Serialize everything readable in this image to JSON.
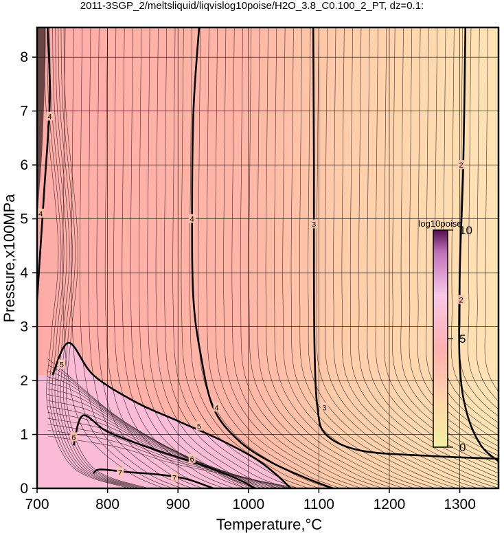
{
  "chart_data": {
    "type": "contour",
    "title": "2011-3SGP_2/meltsliquid/liqvislog10poise/H2O_3.8_C0.100_2_PT, dz=0.1:",
    "xlabel": "Temperature,°C",
    "ylabel": "Pressure,x100MPa",
    "xlim": [
      700,
      1355
    ],
    "ylim": [
      0,
      8.55
    ],
    "xticks": [
      "700",
      "800",
      "900",
      "1000",
      "1100",
      "1200",
      "1300"
    ],
    "yticks": [
      "0",
      "1",
      "2",
      "3",
      "4",
      "5",
      "6",
      "7",
      "8"
    ],
    "grid": true,
    "colorbar": {
      "title": "log10poise",
      "ticks": [
        "0",
        "5",
        "10"
      ],
      "range": [
        0,
        10
      ],
      "colors": [
        "#f4f0a8",
        "#ffc6a0",
        "#ffb4b4",
        "#f8c0e8",
        "#c060b0",
        "#400040"
      ]
    },
    "background_colors": [
      "#fee0b0",
      "#ffb0a8",
      "#f8b8c8"
    ],
    "major_contours": [
      {
        "level": "2",
        "label_points": [
          [
            1302,
            6.0
          ],
          [
            1302,
            3.5
          ]
        ],
        "points": [
          [
            1308,
            8.55
          ],
          [
            1305,
            6
          ],
          [
            1300,
            4
          ],
          [
            1300,
            2.3
          ],
          [
            1310,
            1.4
          ],
          [
            1330,
            0.8
          ],
          [
            1355,
            0.5
          ]
        ]
      },
      {
        "level": "3",
        "label_points": [
          [
            1093,
            4.9
          ],
          [
            1108,
            1.5
          ]
        ],
        "points": [
          [
            1092,
            8.55
          ],
          [
            1093,
            6
          ],
          [
            1093,
            4
          ],
          [
            1094,
            2.5
          ],
          [
            1098,
            1.5
          ],
          [
            1110,
            1.0
          ],
          [
            1160,
            0.7
          ],
          [
            1260,
            0.6
          ],
          [
            1355,
            0.55
          ]
        ]
      },
      {
        "level": "4",
        "label_points": [
          [
            920,
            5.0
          ],
          [
            955,
            1.5
          ],
          [
            705,
            5.1
          ],
          [
            718,
            6.9
          ]
        ],
        "points": [
          [
            930,
            8.55
          ],
          [
            922,
            7
          ],
          [
            920,
            5
          ],
          [
            922,
            3.5
          ],
          [
            932,
            2.5
          ],
          [
            950,
            1.5
          ],
          [
            985,
            0.9
          ],
          [
            1030,
            0.5
          ],
          [
            1080,
            0.2
          ],
          [
            1120,
            0
          ]
        ]
      },
      {
        "level": "4",
        "label_points": [],
        "points": [
          [
            715,
            8.55
          ],
          [
            718,
            7.2
          ],
          [
            710,
            5.5
          ],
          [
            700,
            3.5
          ]
        ]
      },
      {
        "level": "5",
        "label_points": [
          [
            735,
            2.3
          ],
          [
            930,
            1.15
          ]
        ],
        "points": [
          [
            722,
            2.1
          ],
          [
            745,
            2.7
          ],
          [
            780,
            2.1
          ],
          [
            840,
            1.6
          ],
          [
            900,
            1.25
          ],
          [
            960,
            0.9
          ],
          [
            1010,
            0.55
          ],
          [
            1040,
            0.25
          ],
          [
            1060,
            0
          ]
        ]
      },
      {
        "level": "6",
        "label_points": [
          [
            752,
            0.95
          ],
          [
            920,
            0.55
          ]
        ],
        "points": [
          [
            752,
            0.8
          ],
          [
            765,
            1.35
          ],
          [
            800,
            1.05
          ],
          [
            860,
            0.75
          ],
          [
            930,
            0.45
          ],
          [
            980,
            0.2
          ],
          [
            1010,
            0
          ]
        ]
      },
      {
        "level": "7",
        "label_points": [
          [
            818,
            0.3
          ],
          [
            895,
            0.2
          ]
        ],
        "points": [
          [
            780,
            0.28
          ],
          [
            790,
            0.35
          ],
          [
            830,
            0.3
          ],
          [
            870,
            0.26
          ],
          [
            910,
            0.18
          ],
          [
            940,
            0.05
          ],
          [
            950,
            0
          ]
        ]
      }
    ],
    "contour_interval": 0.1,
    "minor_contours": [
      {
        "points": [
          [
            1355,
            8.55
          ],
          [
            1352,
            4
          ],
          [
            1350,
            0
          ]
        ]
      }
    ]
  }
}
